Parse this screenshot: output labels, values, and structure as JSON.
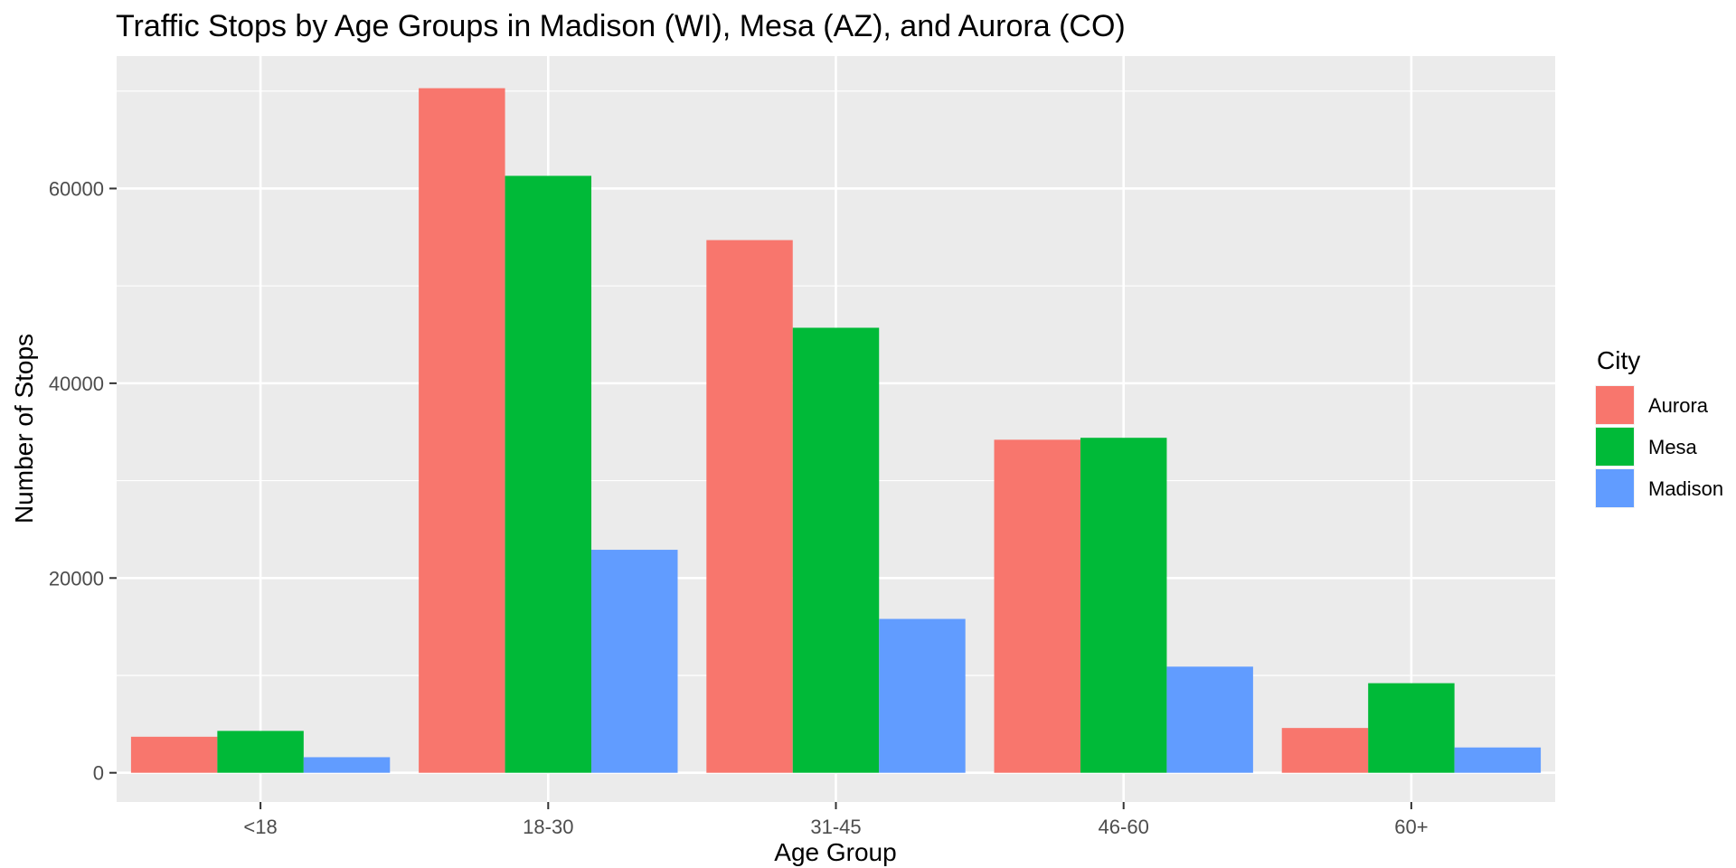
{
  "chart_data": {
    "type": "bar",
    "title": "Traffic Stops by Age Groups in Madison (WI), Mesa (AZ), and Aurora (CO)",
    "xlabel": "Age Group",
    "ylabel": "Number of Stops",
    "categories": [
      "<18",
      "18-30",
      "31-45",
      "46-60",
      "60+"
    ],
    "series": [
      {
        "name": "Aurora",
        "color": "#F8766D",
        "values": [
          3700,
          70300,
          54700,
          34200,
          4600
        ]
      },
      {
        "name": "Mesa",
        "color": "#00BA38",
        "values": [
          4300,
          61300,
          45700,
          34400,
          9200
        ]
      },
      {
        "name": "Madison",
        "color": "#619CFF",
        "values": [
          1600,
          22900,
          15800,
          10900,
          2600
        ]
      }
    ],
    "ylim": [
      -3000,
      73600
    ],
    "yticks": [
      0,
      20000,
      40000,
      60000
    ],
    "yticks_labels": [
      "0",
      "20000",
      "40000",
      "60000"
    ],
    "grid": true,
    "panel_color": "#EBEBEB",
    "legend": {
      "title": "City",
      "placement": "right"
    }
  }
}
